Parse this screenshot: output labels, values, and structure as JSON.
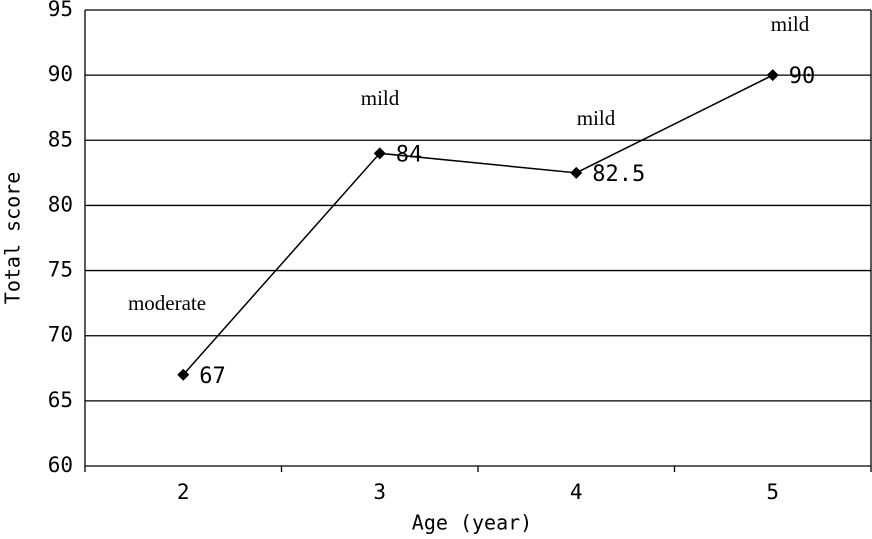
{
  "chart_data": {
    "type": "line",
    "x_label": "Age (year)",
    "y_label": "Total score",
    "categories": [
      "2",
      "3",
      "4",
      "5"
    ],
    "values": [
      67,
      84,
      82.5,
      90
    ],
    "color": "#000000",
    "annotations": [
      "moderate",
      "mild",
      "mild",
      "mild"
    ],
    "ylim": [
      60,
      95
    ],
    "yticks": [
      60,
      65,
      70,
      75,
      80,
      85,
      90,
      95
    ],
    "grid": true
  }
}
